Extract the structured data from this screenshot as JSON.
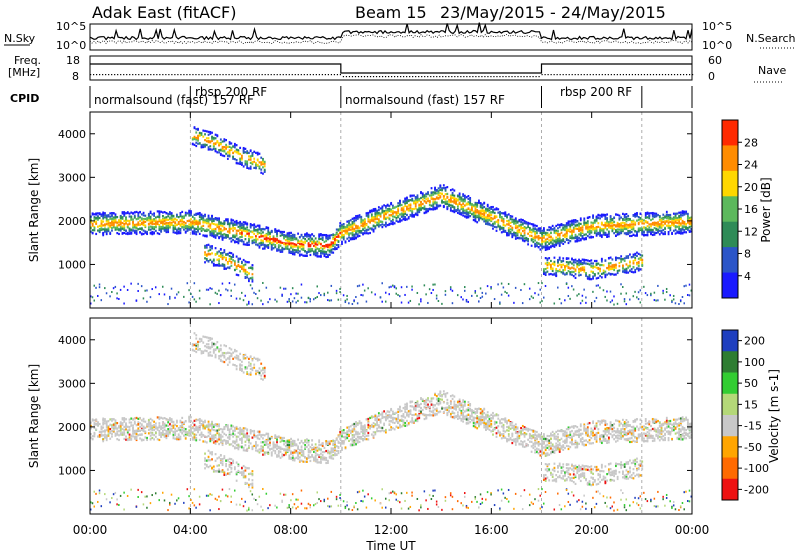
{
  "header": {
    "radar": "Adak East (fitACF)",
    "beam": "Beam 15",
    "dates": "23/May/2015 - 24/May/2015"
  },
  "noise_panel": {
    "left_label": "N.Sky",
    "left_ticks": [
      "10^5",
      "10^0"
    ],
    "right_label": "N.Search",
    "right_ticks": [
      "10^5",
      "10^0"
    ]
  },
  "freq_panel": {
    "left_label_1": "Freq.",
    "left_label_2": "[MHz]",
    "left_ticks": [
      "18",
      "8"
    ],
    "right_label": "Nave",
    "right_ticks": [
      "60",
      "0"
    ]
  },
  "cpid": {
    "label": "CPID",
    "segments": [
      {
        "text": "normalsound (fast) 157 RF",
        "start": 0,
        "end": 4
      },
      {
        "text": "rbsp 200 RF",
        "start": 4,
        "end": 10
      },
      {
        "text": "normalsound (fast) 157 RF",
        "start": 10,
        "end": 18
      },
      {
        "text": "rbsp 200 RF",
        "start": 18,
        "end": 22
      }
    ]
  },
  "chart_data": [
    {
      "type": "heatmap",
      "name": "power",
      "ylabel": "Slant Range [km]",
      "yticks": [
        "1000",
        "2000",
        "3000",
        "4000"
      ],
      "ylim": [
        0,
        4500
      ],
      "colorbar_label": "Power [dB]",
      "colorbar_ticks": [
        "4",
        "8",
        "12",
        "16",
        "20",
        "24",
        "28"
      ],
      "colors": [
        "#1a1aff",
        "#2b55c8",
        "#2e8b57",
        "#5cb85c",
        "#ffd700",
        "#ff8c00",
        "#ff2a00"
      ],
      "bands": [
        {
          "t": [
            0,
            4,
            6,
            8,
            9.5,
            10,
            12,
            14,
            16,
            18,
            20,
            22,
            24
          ],
          "r": [
            1950,
            2000,
            1750,
            1500,
            1450,
            1750,
            2200,
            2600,
            2100,
            1600,
            1900,
            1950,
            2000
          ]
        },
        {
          "t": [
            4,
            5,
            6,
            7
          ],
          "r": [
            4000,
            3800,
            3500,
            3300
          ]
        },
        {
          "t": [
            4.5,
            5.5,
            6.5
          ],
          "r": [
            1300,
            1100,
            800
          ]
        },
        {
          "t": [
            18,
            20,
            22
          ],
          "r": [
            1000,
            900,
            1100
          ]
        }
      ]
    },
    {
      "type": "heatmap",
      "name": "velocity",
      "ylabel": "Slant Range [km]",
      "yticks": [
        "1000",
        "2000",
        "3000",
        "4000"
      ],
      "ylim": [
        0,
        4500
      ],
      "colorbar_label": "Velocity [m s-1]",
      "colorbar_ticks": [
        "200",
        "100",
        "50",
        "15",
        "-15",
        "-50",
        "-100",
        "-200"
      ],
      "colors": [
        "#1f3fbf",
        "#2e7d32",
        "#32cd32",
        "#b4d878",
        "#c8c8c8",
        "#ffa500",
        "#ff6a00",
        "#ee1111"
      ],
      "xlabel": "Time UT",
      "xticks": [
        "00:00",
        "04:00",
        "08:00",
        "12:00",
        "16:00",
        "20:00",
        "00:00"
      ],
      "xlim": [
        0,
        24
      ]
    }
  ]
}
